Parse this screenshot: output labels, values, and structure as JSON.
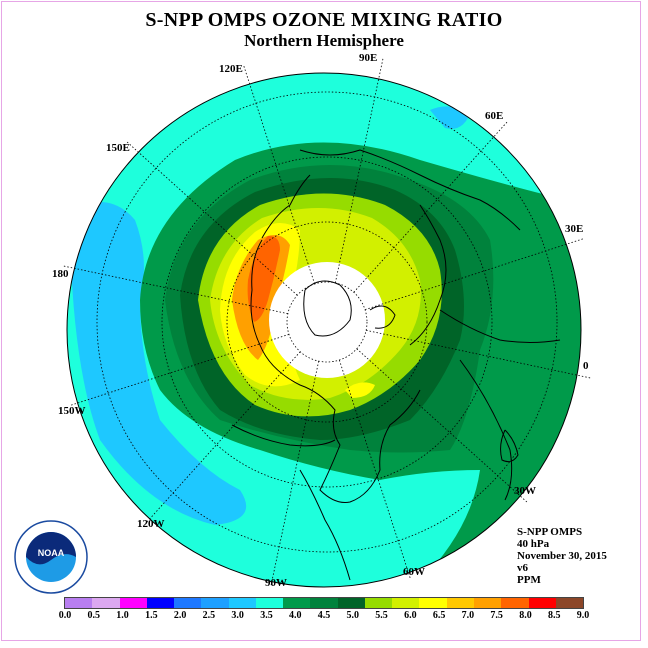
{
  "title": "S-NPP OMPS OZONE MIXING RATIO",
  "subtitle": "Northern Hemisphere",
  "longitude_labels": {
    "lon_90E": "90E",
    "lon_60E": "60E",
    "lon_30E": "30E",
    "lon_0": "0",
    "lon_30W": "30W",
    "lon_60W": "60W",
    "lon_90W": "90W",
    "lon_120W": "120W",
    "lon_150W": "150W",
    "lon_180": "180",
    "lon_150E": "150E",
    "lon_120E": "120E"
  },
  "info": {
    "instrument": "S-NPP OMPS",
    "pressure": "40 hPa",
    "date": "November 30, 2015",
    "version": "v6",
    "units": "PPM"
  },
  "logo_text": "NOAA",
  "colorbar": {
    "colors": [
      "#b87ef0",
      "#dca8f0",
      "#ff00ff",
      "#0000ff",
      "#1e78ff",
      "#1ea0ff",
      "#1ec8ff",
      "#1effdc",
      "#009a4a",
      "#00823c",
      "#006428",
      "#96dc00",
      "#d2f000",
      "#ffff00",
      "#ffc800",
      "#ffa000",
      "#ff6400",
      "#ff0000",
      "#8c4628"
    ],
    "ticks": [
      "0.0",
      "0.5",
      "1.0",
      "1.5",
      "2.0",
      "2.5",
      "3.0",
      "3.5",
      "4.0",
      "4.5",
      "5.0",
      "5.5",
      "6.0",
      "6.5",
      "7.0",
      "7.5",
      "8.0",
      "8.5",
      "9.0"
    ]
  },
  "field_colors": {
    "cyan": "#1effdc",
    "light_blue": "#1ec8ff",
    "green_4_0": "#009a4a",
    "green_4_5": "#00823c",
    "dark_green": "#006428",
    "lime": "#96dc00",
    "yellow_green": "#d2f000",
    "yellow": "#ffff00",
    "orange": "#ffa000",
    "red_orange": "#ff6400",
    "missing": "#ffffff"
  }
}
